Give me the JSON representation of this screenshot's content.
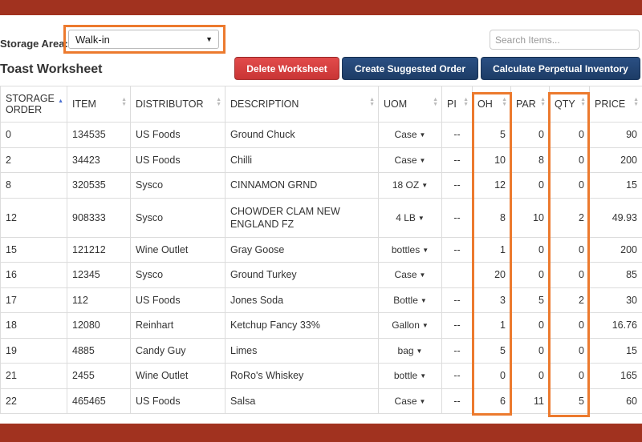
{
  "storage": {
    "label": "Storage Area:",
    "selected": "Walk-in"
  },
  "search": {
    "placeholder": "Search Items..."
  },
  "worksheet": {
    "title": "Toast Worksheet"
  },
  "buttons": {
    "delete": "Delete Worksheet",
    "suggest": "Create Suggested Order",
    "calc": "Calculate Perpetual Inventory"
  },
  "columns": {
    "storage_order_1": "STORAGE",
    "storage_order_2": "ORDER",
    "item": "ITEM",
    "distributor": "DISTRIBUTOR",
    "description": "DESCRIPTION",
    "uom": "UOM",
    "pi": "PI",
    "oh": "OH",
    "par": "PAR",
    "qty": "QTY",
    "price": "PRICE"
  },
  "rows": [
    {
      "order": "0",
      "item": "134535",
      "distributor": "US Foods",
      "description": "Ground Chuck",
      "uom": "Case",
      "pi": "--",
      "oh": "5",
      "par": "0",
      "qty": "0",
      "price": "90"
    },
    {
      "order": "2",
      "item": "34423",
      "distributor": "US Foods",
      "description": "Chilli",
      "uom": "Case",
      "pi": "--",
      "oh": "10",
      "par": "8",
      "qty": "0",
      "price": "200"
    },
    {
      "order": "8",
      "item": "320535",
      "distributor": "Sysco",
      "description": "CINNAMON GRND",
      "uom": "18 OZ",
      "pi": "--",
      "oh": "12",
      "par": "0",
      "qty": "0",
      "price": "15"
    },
    {
      "order": "12",
      "item": "908333",
      "distributor": "Sysco",
      "description": "CHOWDER CLAM NEW ENGLAND FZ",
      "uom": "4 LB",
      "pi": "--",
      "oh": "8",
      "par": "10",
      "qty": "2",
      "price": "49.93"
    },
    {
      "order": "15",
      "item": "121212",
      "distributor": "Wine Outlet",
      "description": "Gray Goose",
      "uom": "bottles",
      "pi": "--",
      "oh": "1",
      "par": "0",
      "qty": "0",
      "price": "200"
    },
    {
      "order": "16",
      "item": "12345",
      "distributor": "Sysco",
      "description": "Ground Turkey",
      "uom": "Case",
      "pi": "",
      "oh": "20",
      "par": "0",
      "qty": "0",
      "price": "85"
    },
    {
      "order": "17",
      "item": "112",
      "distributor": "US Foods",
      "description": "Jones Soda",
      "uom": "Bottle",
      "pi": "--",
      "oh": "3",
      "par": "5",
      "qty": "2",
      "price": "30"
    },
    {
      "order": "18",
      "item": "12080",
      "distributor": "Reinhart",
      "description": "Ketchup Fancy 33%",
      "uom": "Gallon",
      "pi": "--",
      "oh": "1",
      "par": "0",
      "qty": "0",
      "price": "16.76"
    },
    {
      "order": "19",
      "item": "4885",
      "distributor": "Candy Guy",
      "description": "Limes",
      "uom": "bag",
      "pi": "--",
      "oh": "5",
      "par": "0",
      "qty": "0",
      "price": "15"
    },
    {
      "order": "21",
      "item": "2455",
      "distributor": "Wine Outlet",
      "description": "RoRo's Whiskey",
      "uom": "bottle",
      "pi": "--",
      "oh": "0",
      "par": "0",
      "qty": "0",
      "price": "165"
    },
    {
      "order": "22",
      "item": "465465",
      "distributor": "US Foods",
      "description": "Salsa",
      "uom": "Case",
      "pi": "--",
      "oh": "6",
      "par": "11",
      "qty": "5",
      "price": "60"
    }
  ],
  "colors": {
    "frame": "#a1321f",
    "highlight": "#ec7a2e",
    "delete": "#d63f3f",
    "primary": "#1f3f6c"
  }
}
